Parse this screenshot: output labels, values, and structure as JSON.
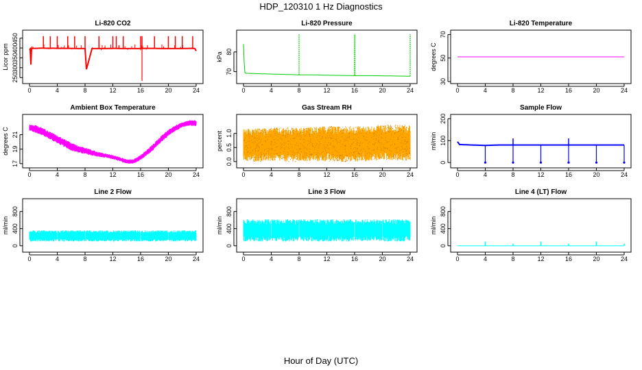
{
  "suptitle": "HDP_120310  1 Hz Diagnostics",
  "xlabel": "Hour of Day (UTC)",
  "chart_data": [
    {
      "type": "line",
      "title": "Li-820 CO2",
      "ylabel": "Licor ppm",
      "color": "#ff0000",
      "xlim": [
        0,
        24
      ],
      "ylim": [
        230,
        480
      ],
      "xticks": [
        0,
        4,
        8,
        12,
        16,
        20,
        24
      ],
      "yticks": [
        250,
        300,
        350,
        400,
        450
      ],
      "series": [
        {
          "x": [
            0,
            0.1,
            0.15,
            0.3,
            1,
            1.5,
            2,
            2.8,
            3,
            3.3,
            4,
            5,
            6,
            7,
            8,
            8.2,
            9,
            10,
            11,
            12,
            12.5,
            13,
            14,
            15,
            16,
            16.5,
            17,
            18,
            19,
            20,
            21,
            22,
            23,
            23.5,
            23.8,
            24
          ],
          "y": [
            390,
            395,
            275,
            398,
            398,
            399,
            399,
            398,
            398,
            399,
            398,
            398,
            398,
            397,
            397,
            292,
            397,
            397,
            397,
            398,
            398,
            397,
            397,
            397,
            397,
            398,
            398,
            398,
            397,
            397,
            397,
            397,
            398,
            398,
            397,
            385
          ]
        }
      ],
      "spikes_up": [
        2.0,
        3.0,
        4.0,
        5.5,
        6.5,
        8.0,
        10.0,
        12.0,
        12.5,
        13.5,
        16.0,
        16.2,
        18.0,
        20.0,
        21.0,
        22.0,
        23.5
      ],
      "spike_up_to": 460,
      "dips": [
        8.2,
        16.2
      ],
      "dip_to": [
        292,
        233
      ]
    },
    {
      "type": "line",
      "title": "Li-820 Pressure",
      "ylabel": "kPa",
      "color": "#00cc00",
      "xlim": [
        0,
        24
      ],
      "ylim": [
        65,
        90
      ],
      "xticks": [
        0,
        4,
        8,
        12,
        16,
        20,
        24
      ],
      "yticks": [
        70,
        80
      ],
      "series": [
        {
          "x": [
            0,
            0.15,
            0.3,
            2,
            4,
            6,
            8,
            10,
            12,
            14,
            16,
            18,
            20,
            22,
            24
          ],
          "y": [
            84,
            70,
            69.2,
            69,
            68.8,
            68.6,
            68.4,
            68.4,
            68.2,
            68.1,
            68.0,
            68.0,
            67.9,
            67.8,
            67.7
          ]
        }
      ],
      "spikes_up": [
        8.0,
        16.0,
        16.05,
        24.0
      ],
      "spike_up_to": 89
    },
    {
      "type": "line",
      "title": "Li-820 Temperature",
      "ylabel": "degrees C",
      "color": "#ff00ff",
      "xlim": [
        0,
        24
      ],
      "ylim": [
        30,
        72
      ],
      "xticks": [
        0,
        4,
        8,
        12,
        16,
        20,
        24
      ],
      "yticks": [
        30,
        50,
        70
      ],
      "series": [
        {
          "x": [
            0,
            24
          ],
          "y": [
            51,
            51
          ]
        }
      ]
    },
    {
      "type": "area",
      "title": "Ambient Box Temperature",
      "ylabel": "degrees C",
      "color": "#ff00ff",
      "xlim": [
        0,
        24
      ],
      "ylim": [
        16.7,
        23.5
      ],
      "xticks": [
        0,
        4,
        8,
        12,
        16,
        20,
        24
      ],
      "yticks": [
        17,
        19,
        21
      ],
      "x": [
        0,
        1,
        2,
        3,
        4,
        5,
        6,
        7,
        8,
        9,
        10,
        11,
        12,
        13,
        14,
        15,
        16,
        17,
        18,
        19,
        20,
        21,
        22,
        23,
        24
      ],
      "low": [
        21.5,
        21.2,
        20.8,
        20.3,
        19.8,
        19.3,
        18.8,
        18.5,
        18.3,
        18.1,
        17.9,
        17.8,
        17.6,
        17.3,
        17.0,
        17.0,
        17.5,
        18.2,
        19.0,
        20.0,
        20.8,
        21.5,
        22.0,
        22.2,
        22.2
      ],
      "high": [
        22.4,
        22.3,
        21.9,
        21.4,
        20.9,
        20.4,
        19.9,
        19.5,
        19.2,
        18.9,
        18.6,
        18.4,
        18.2,
        17.9,
        17.6,
        17.6,
        18.2,
        19.0,
        19.9,
        20.9,
        21.7,
        22.3,
        22.7,
        23.0,
        23.0
      ]
    },
    {
      "type": "area",
      "title": "Gas Stream RH",
      "ylabel": "percent",
      "color": "#ffa500",
      "xlim": [
        0,
        24
      ],
      "ylim": [
        -0.15,
        1.6
      ],
      "xticks": [
        0,
        4,
        8,
        12,
        16,
        20,
        24
      ],
      "yticks": [
        0.0,
        0.5,
        1.0
      ],
      "x": [
        0,
        4,
        8,
        12,
        16,
        20,
        24
      ],
      "low": [
        0.0,
        0.0,
        0.0,
        0.0,
        0.0,
        0.05,
        0.05
      ],
      "high": [
        1.15,
        1.2,
        1.2,
        1.25,
        1.25,
        1.3,
        1.3
      ]
    },
    {
      "type": "line",
      "title": "Sample Flow",
      "ylabel": "ml/min",
      "color": "#0000ff",
      "xlim": [
        0,
        24
      ],
      "ylim": [
        -15,
        210
      ],
      "xticks": [
        0,
        4,
        8,
        12,
        16,
        20,
        24
      ],
      "yticks": [
        0,
        100,
        200
      ],
      "series": [
        {
          "x": [
            0,
            0.3,
            2,
            4,
            6,
            8,
            10,
            12,
            14,
            16,
            18,
            20,
            22,
            24
          ],
          "y": [
            95,
            82,
            80,
            78,
            80,
            80,
            80,
            80,
            80,
            80,
            80,
            80,
            80,
            80
          ]
        }
      ],
      "dips": [
        4.0,
        8.0,
        12.0,
        16.0,
        20.0,
        24.0
      ],
      "dip_to": [
        0,
        0,
        0,
        0,
        0,
        0
      ],
      "spikes_up": [
        8.0,
        16.0
      ],
      "spike_up_to": 110
    },
    {
      "type": "area",
      "title": "Line 2 Flow",
      "ylabel": "ml/min",
      "color": "#00ffff",
      "xlim": [
        0,
        24
      ],
      "ylim": [
        -100,
        1050
      ],
      "xticks": [
        0,
        4,
        8,
        12,
        16,
        20,
        24
      ],
      "yticks": [
        0,
        400,
        800
      ],
      "x": [
        0,
        24
      ],
      "low": [
        100,
        100
      ],
      "high": [
        360,
        360
      ],
      "gaps": [
        4,
        8,
        12,
        16,
        20
      ]
    },
    {
      "type": "area",
      "title": "Line 3 Flow",
      "ylabel": "ml/min",
      "color": "#00ffff",
      "xlim": [
        0,
        24
      ],
      "ylim": [
        -100,
        1050
      ],
      "xticks": [
        0,
        4,
        8,
        12,
        16,
        20,
        24
      ],
      "yticks": [
        0,
        400,
        800
      ],
      "x": [
        0,
        24
      ],
      "low": [
        100,
        100
      ],
      "high": [
        620,
        620
      ],
      "gaps": [
        4,
        8,
        12,
        16,
        20
      ]
    },
    {
      "type": "line",
      "title": "Line 4 (LT) Flow",
      "ylabel": "ml/min",
      "color": "#00ffff",
      "xlim": [
        0,
        24
      ],
      "ylim": [
        -100,
        1050
      ],
      "xticks": [
        0,
        4,
        8,
        12,
        16,
        20,
        24
      ],
      "yticks": [
        0,
        400,
        800
      ],
      "series": [
        {
          "x": [
            0,
            24
          ],
          "y": [
            0,
            0
          ]
        }
      ],
      "spikes_up": [
        4,
        8,
        12,
        16,
        20,
        24
      ],
      "spike_heights": [
        100,
        50,
        100,
        50,
        100,
        50
      ]
    }
  ]
}
